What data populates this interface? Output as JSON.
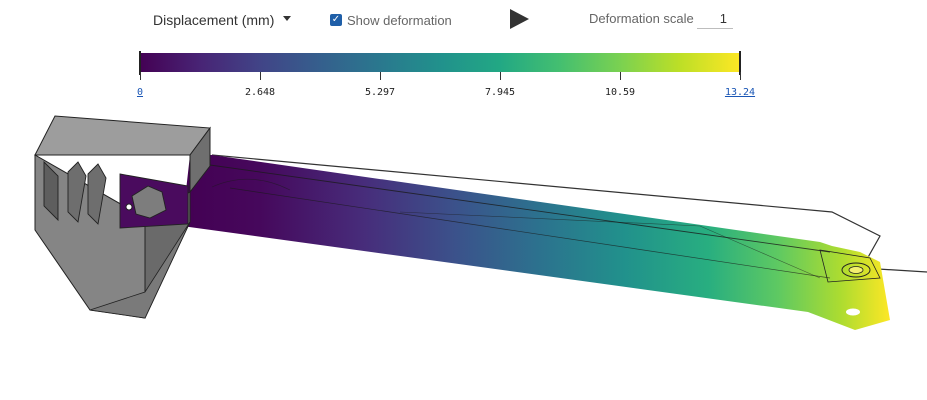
{
  "toolbar": {
    "result_type": "Displacement (mm)",
    "show_deformation_label": "Show deformation",
    "show_deformation_checked": true,
    "play_icon": "play-icon",
    "deformation_scale_label": "Deformation scale",
    "deformation_scale_value": "1"
  },
  "legend": {
    "colormap": [
      "#440154",
      "#482475",
      "#414487",
      "#355f8d",
      "#2a788e",
      "#21918c",
      "#22a884",
      "#44bf70",
      "#7ad151",
      "#bddf26",
      "#fde725"
    ],
    "ticks": [
      {
        "label": "0",
        "link": true
      },
      {
        "label": "2.648",
        "link": false
      },
      {
        "label": "5.297",
        "link": false
      },
      {
        "label": "7.945",
        "link": false
      },
      {
        "label": "10.59",
        "link": false
      },
      {
        "label": "13.24",
        "link": true
      }
    ]
  },
  "model": {
    "bracket_color": "#8a8a8a",
    "arm_min_color": "#440154",
    "arm_max_color": "#fde725"
  }
}
